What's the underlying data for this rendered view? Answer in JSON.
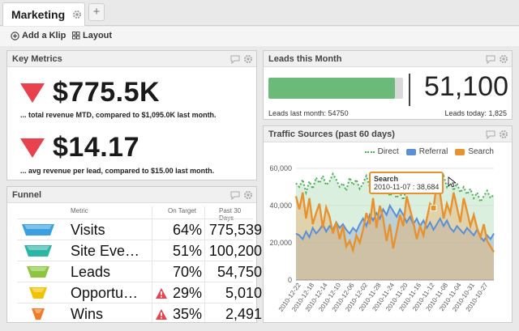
{
  "tabs": {
    "active_label": "Marketing",
    "add_label": "+"
  },
  "toolbar": {
    "add_klip": "Add a Klip",
    "layout": "Layout"
  },
  "key_metrics": {
    "title": "Key Metrics",
    "metrics": [
      {
        "value": "$775.5K",
        "description": "... total revenue MTD, compared to $1,095.0K last month."
      },
      {
        "value": "$14.17",
        "description": "... avg revenue per lead, compared to $15.00 last month."
      }
    ],
    "indicator_color": "#e8424f"
  },
  "funnel": {
    "title": "Funnel",
    "columns": [
      "Metric",
      "On Target",
      "Past 30 Days"
    ],
    "rows": [
      {
        "metric": "Visits",
        "target": "64%",
        "last30": "775,539",
        "warning": false,
        "color": "#3aa0e0"
      },
      {
        "metric": "Site Eve…",
        "target": "51%",
        "last30": "100,200",
        "warning": false,
        "color": "#2cb6a6"
      },
      {
        "metric": "Leads",
        "target": "70%",
        "last30": "54,750",
        "warning": false,
        "color": "#8cc63f"
      },
      {
        "metric": "Opportu…",
        "target": "29%",
        "last30": "5,010",
        "warning": true,
        "color": "#f2c200"
      },
      {
        "metric": "Wins",
        "target": "35%",
        "last30": "2,491",
        "warning": true,
        "color": "#f07c2a"
      }
    ]
  },
  "leads": {
    "title": "Leads this Month",
    "value": "51,100",
    "progress": 0.94,
    "last_month": "Leads last month: 54750",
    "today": "Leads today: 1,825",
    "bar_color": "#6cba79"
  },
  "traffic": {
    "title": "Traffic Sources (past 60 days)",
    "legend": [
      {
        "name": "Direct",
        "color": "#4cae57"
      },
      {
        "name": "Referral",
        "color": "#5b8fd6"
      },
      {
        "name": "Search",
        "color": "#e8922f"
      }
    ],
    "tooltip": {
      "title": "Search",
      "text": "2010-11-07 : 38,684"
    }
  },
  "chart_data": {
    "type": "area",
    "title": "Traffic Sources (past 60 days)",
    "xlabel": "",
    "ylabel": "",
    "ylim": [
      0,
      60000
    ],
    "yticks": [
      "0",
      "20,000",
      "40,000",
      "60,000"
    ],
    "x_tick_labels": [
      "2010-12-22",
      "2010-12-18",
      "2010-12-14",
      "2010-12-10",
      "2010-12-06",
      "2010-12-02",
      "2010-11-28",
      "2010-11-24",
      "2010-11-20",
      "2010-11-16",
      "2010-11-12",
      "2010-11-08",
      "2010-11-04",
      "2010-10-31",
      "2010-10-27"
    ],
    "grid": true,
    "legend_position": "top-right",
    "series": [
      {
        "name": "Direct",
        "values": [
          52000,
          50000,
          54000,
          47000,
          53000,
          49000,
          55000,
          52000,
          56000,
          51000,
          53000,
          57000,
          54000,
          50000,
          52000,
          48000,
          55000,
          51000,
          54000,
          49000,
          52000,
          56000,
          50000,
          53000,
          48000,
          51000,
          47000,
          50000,
          45000,
          48000,
          44000,
          47000,
          43000,
          50000,
          46000,
          52000,
          48000,
          53000,
          49000,
          55000,
          51000,
          54000,
          57000,
          52000,
          56000,
          50000,
          54000,
          48000,
          52000,
          47000,
          50000,
          46000,
          49000,
          44000,
          47000,
          42000,
          45000,
          48000,
          44000,
          46000
        ]
      },
      {
        "name": "Referral",
        "values": [
          25000,
          24000,
          22000,
          26000,
          23000,
          28000,
          25000,
          27000,
          30000,
          26000,
          29000,
          27000,
          31000,
          28000,
          30000,
          27000,
          25000,
          28000,
          26000,
          30000,
          33000,
          29000,
          35000,
          32000,
          36000,
          33000,
          38000,
          35000,
          40000,
          37000,
          34000,
          38000,
          35000,
          31000,
          34000,
          30000,
          33000,
          29000,
          32000,
          28000,
          31000,
          27000,
          30000,
          33000,
          29000,
          32000,
          28000,
          26000,
          29000,
          27000,
          25000,
          28000,
          26000,
          24000,
          27000,
          23000,
          21000,
          24000,
          22000,
          25000
        ]
      },
      {
        "name": "Search",
        "values": [
          45000,
          38000,
          47000,
          33000,
          44000,
          30000,
          36000,
          41000,
          28000,
          39000,
          34000,
          25000,
          31000,
          22000,
          29000,
          18000,
          21000,
          16000,
          24000,
          20000,
          27000,
          36000,
          30000,
          44000,
          28000,
          40000,
          33000,
          21000,
          30000,
          17000,
          26000,
          35000,
          29000,
          45000,
          38000,
          31000,
          22000,
          29000,
          24000,
          33000,
          41000,
          38684,
          52000,
          46000,
          33000,
          41000,
          36000,
          47000,
          39000,
          31000,
          44000,
          37000,
          29000,
          35000,
          28000,
          23000,
          30000,
          21000,
          18000,
          15000
        ]
      }
    ]
  }
}
